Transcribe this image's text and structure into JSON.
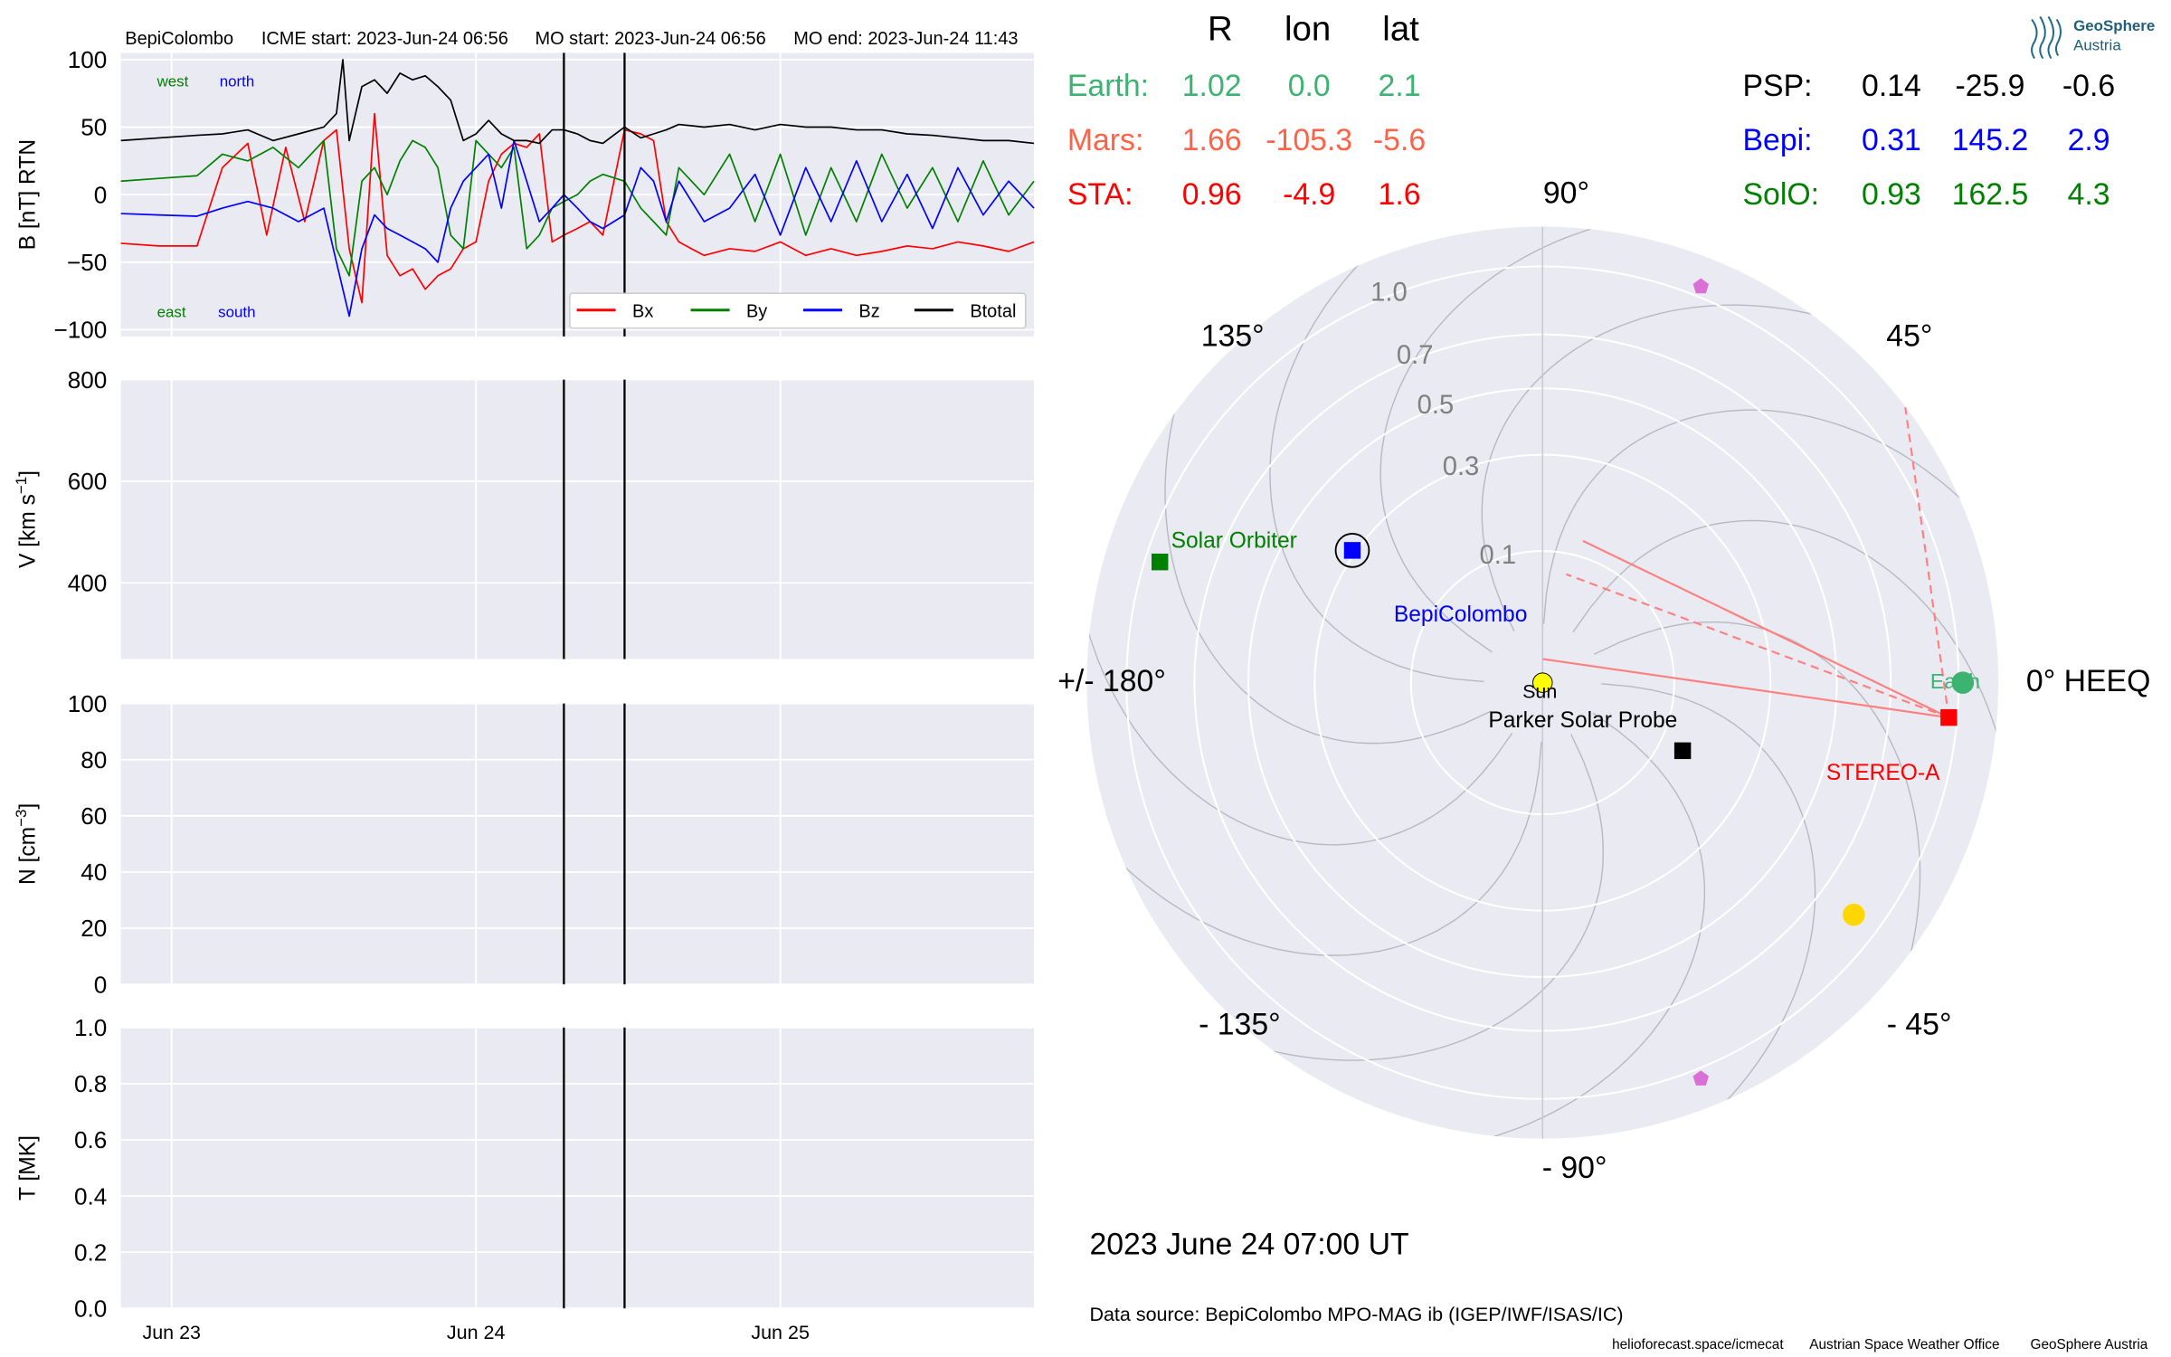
{
  "header": {
    "spacecraft": "BepiColombo",
    "icme_start": "ICME start: 2023-Jun-24 06:56",
    "mo_start": "MO start: 2023-Jun-24 06:56",
    "mo_end": "MO end: 2023-Jun-24 11:43"
  },
  "logo": {
    "line1": "GeoSphere",
    "line2": "Austria"
  },
  "chart_data": [
    {
      "type": "line",
      "panel": "magnetic field",
      "ylabel": "B [nT] RTN",
      "ylim": [
        -105,
        105
      ],
      "yticks": [
        100,
        50,
        0,
        -50,
        -100
      ],
      "ytick_labels": [
        "100",
        "50",
        "0",
        "−50",
        "−100"
      ],
      "grid": true,
      "legend_placement": "lower-right",
      "corner_labels": {
        "west": "west",
        "north": "north",
        "east": "east",
        "south": "south"
      },
      "series": [
        {
          "name": "Bx",
          "color": "#ff0000",
          "x": [
            "2023-06-22 20:00",
            "2023-06-22 23:00",
            "2023-06-23 02:00",
            "2023-06-23 04:00",
            "2023-06-23 06:00",
            "2023-06-23 07:30",
            "2023-06-23 09:00",
            "2023-06-23 10:30",
            "2023-06-23 12:00",
            "2023-06-23 13:00",
            "2023-06-23 14:00",
            "2023-06-23 15:00",
            "2023-06-23 16:00",
            "2023-06-23 17:00",
            "2023-06-23 18:00",
            "2023-06-23 19:00",
            "2023-06-23 20:00",
            "2023-06-23 21:00",
            "2023-06-23 22:00",
            "2023-06-23 23:00",
            "2023-06-24 00:00",
            "2023-06-24 01:00",
            "2023-06-24 02:00",
            "2023-06-24 03:00",
            "2023-06-24 04:00",
            "2023-06-24 05:00",
            "2023-06-24 06:00",
            "2023-06-24 06:56",
            "2023-06-24 08:00",
            "2023-06-24 09:00",
            "2023-06-24 10:00",
            "2023-06-24 11:43",
            "2023-06-24 13:00",
            "2023-06-24 14:00",
            "2023-06-24 15:00",
            "2023-06-24 16:00",
            "2023-06-24 17:00",
            "2023-06-24 18:00",
            "2023-06-24 20:00",
            "2023-06-24 22:00",
            "2023-06-25 00:00",
            "2023-06-25 02:00",
            "2023-06-25 04:00",
            "2023-06-25 06:00",
            "2023-06-25 08:00",
            "2023-06-25 10:00",
            "2023-06-25 12:00",
            "2023-06-25 14:00",
            "2023-06-25 16:00",
            "2023-06-25 18:00",
            "2023-06-25 20:00"
          ],
          "y": [
            -36,
            -38,
            -38,
            20,
            38,
            -30,
            35,
            -20,
            40,
            48,
            -40,
            -80,
            60,
            -45,
            -60,
            -55,
            -70,
            -60,
            -55,
            -40,
            -35,
            10,
            30,
            38,
            35,
            45,
            -35,
            -30,
            -25,
            -20,
            -30,
            48,
            45,
            40,
            -20,
            -35,
            -40,
            -45,
            -40,
            -42,
            -35,
            -45,
            -40,
            -45,
            -42,
            -38,
            -40,
            -35,
            -38,
            -42,
            -35
          ]
        },
        {
          "name": "By",
          "color": "#008000",
          "x": [
            "2023-06-22 20:00",
            "2023-06-22 23:00",
            "2023-06-23 02:00",
            "2023-06-23 04:00",
            "2023-06-23 06:00",
            "2023-06-23 08:00",
            "2023-06-23 10:00",
            "2023-06-23 12:00",
            "2023-06-23 13:00",
            "2023-06-23 14:00",
            "2023-06-23 15:00",
            "2023-06-23 16:00",
            "2023-06-23 17:00",
            "2023-06-23 18:00",
            "2023-06-23 19:00",
            "2023-06-23 20:00",
            "2023-06-23 21:00",
            "2023-06-23 22:00",
            "2023-06-23 23:00",
            "2023-06-24 00:00",
            "2023-06-24 01:00",
            "2023-06-24 02:00",
            "2023-06-24 03:00",
            "2023-06-24 04:00",
            "2023-06-24 05:00",
            "2023-06-24 06:00",
            "2023-06-24 06:56",
            "2023-06-24 08:00",
            "2023-06-24 09:00",
            "2023-06-24 10:00",
            "2023-06-24 11:43",
            "2023-06-24 13:00",
            "2023-06-24 14:00",
            "2023-06-24 15:00",
            "2023-06-24 16:00",
            "2023-06-24 18:00",
            "2023-06-24 20:00",
            "2023-06-24 22:00",
            "2023-06-25 00:00",
            "2023-06-25 02:00",
            "2023-06-25 04:00",
            "2023-06-25 06:00",
            "2023-06-25 08:00",
            "2023-06-25 10:00",
            "2023-06-25 12:00",
            "2023-06-25 14:00",
            "2023-06-25 16:00",
            "2023-06-25 18:00",
            "2023-06-25 20:00"
          ],
          "y": [
            10,
            12,
            14,
            30,
            25,
            35,
            20,
            40,
            -40,
            -60,
            10,
            20,
            0,
            25,
            40,
            35,
            20,
            -30,
            -40,
            40,
            30,
            20,
            35,
            -40,
            -30,
            -10,
            -5,
            0,
            10,
            15,
            10,
            -10,
            -20,
            -30,
            20,
            0,
            30,
            -20,
            30,
            -30,
            20,
            -20,
            30,
            -10,
            20,
            -20,
            25,
            -15,
            10
          ]
        },
        {
          "name": "Bz",
          "color": "#0000ff",
          "x": [
            "2023-06-22 20:00",
            "2023-06-22 23:00",
            "2023-06-23 02:00",
            "2023-06-23 04:00",
            "2023-06-23 06:00",
            "2023-06-23 08:00",
            "2023-06-23 10:00",
            "2023-06-23 12:00",
            "2023-06-23 13:00",
            "2023-06-23 14:00",
            "2023-06-23 15:00",
            "2023-06-23 16:00",
            "2023-06-23 17:00",
            "2023-06-23 18:00",
            "2023-06-23 19:00",
            "2023-06-23 20:00",
            "2023-06-23 21:00",
            "2023-06-23 22:00",
            "2023-06-23 23:00",
            "2023-06-24 00:00",
            "2023-06-24 01:00",
            "2023-06-24 02:00",
            "2023-06-24 03:00",
            "2023-06-24 04:00",
            "2023-06-24 05:00",
            "2023-06-24 06:00",
            "2023-06-24 06:56",
            "2023-06-24 08:00",
            "2023-06-24 09:00",
            "2023-06-24 10:00",
            "2023-06-24 11:43",
            "2023-06-24 13:00",
            "2023-06-24 14:00",
            "2023-06-24 15:00",
            "2023-06-24 16:00",
            "2023-06-24 18:00",
            "2023-06-24 20:00",
            "2023-06-24 22:00",
            "2023-06-25 00:00",
            "2023-06-25 02:00",
            "2023-06-25 04:00",
            "2023-06-25 06:00",
            "2023-06-25 08:00",
            "2023-06-25 10:00",
            "2023-06-25 12:00",
            "2023-06-25 14:00",
            "2023-06-25 16:00",
            "2023-06-25 18:00",
            "2023-06-25 20:00"
          ],
          "y": [
            -14,
            -15,
            -16,
            -10,
            -5,
            -10,
            -20,
            -10,
            -50,
            -90,
            -40,
            -15,
            -25,
            -30,
            -35,
            -40,
            -50,
            -10,
            10,
            20,
            30,
            -10,
            40,
            10,
            -20,
            -10,
            0,
            -10,
            -20,
            -25,
            -15,
            20,
            10,
            -20,
            10,
            -20,
            -10,
            15,
            -30,
            20,
            -20,
            25,
            -20,
            15,
            -25,
            20,
            -15,
            10,
            -10
          ]
        },
        {
          "name": "Btotal",
          "color": "#000000",
          "x": [
            "2023-06-22 20:00",
            "2023-06-22 23:00",
            "2023-06-23 02:00",
            "2023-06-23 04:00",
            "2023-06-23 06:00",
            "2023-06-23 08:00",
            "2023-06-23 10:00",
            "2023-06-23 12:00",
            "2023-06-23 13:00",
            "2023-06-23 13:30",
            "2023-06-23 14:00",
            "2023-06-23 15:00",
            "2023-06-23 16:00",
            "2023-06-23 17:00",
            "2023-06-23 18:00",
            "2023-06-23 19:00",
            "2023-06-23 20:00",
            "2023-06-23 21:00",
            "2023-06-23 22:00",
            "2023-06-23 23:00",
            "2023-06-24 00:00",
            "2023-06-24 01:00",
            "2023-06-24 02:00",
            "2023-06-24 03:00",
            "2023-06-24 04:00",
            "2023-06-24 05:00",
            "2023-06-24 06:00",
            "2023-06-24 06:56",
            "2023-06-24 08:00",
            "2023-06-24 09:00",
            "2023-06-24 10:00",
            "2023-06-24 11:43",
            "2023-06-24 13:00",
            "2023-06-24 14:00",
            "2023-06-24 15:00",
            "2023-06-24 16:00",
            "2023-06-24 18:00",
            "2023-06-24 20:00",
            "2023-06-24 22:00",
            "2023-06-25 00:00",
            "2023-06-25 02:00",
            "2023-06-25 04:00",
            "2023-06-25 06:00",
            "2023-06-25 08:00",
            "2023-06-25 10:00",
            "2023-06-25 12:00",
            "2023-06-25 14:00",
            "2023-06-25 16:00",
            "2023-06-25 18:00",
            "2023-06-25 20:00"
          ],
          "y": [
            40,
            42,
            44,
            45,
            48,
            40,
            45,
            50,
            60,
            100,
            40,
            80,
            85,
            75,
            90,
            85,
            88,
            80,
            70,
            40,
            45,
            55,
            45,
            40,
            40,
            38,
            48,
            48,
            45,
            40,
            38,
            50,
            42,
            45,
            48,
            52,
            50,
            52,
            48,
            52,
            50,
            50,
            48,
            48,
            45,
            44,
            42,
            40,
            40,
            38
          ]
        }
      ],
      "vlines": [
        "2023-06-24 06:56",
        "2023-06-24 11:43"
      ]
    },
    {
      "type": "line",
      "panel": "speed",
      "ylabel": "V [km s",
      "ylabel_sup": "−1",
      "ylabel_end": "]",
      "ylim": [
        250,
        800
      ],
      "yticks": [
        800,
        600,
        400
      ],
      "ytick_labels": [
        "800",
        "600",
        "400"
      ],
      "grid": true,
      "series": []
    },
    {
      "type": "line",
      "panel": "density",
      "ylabel": "N [cm",
      "ylabel_sup": "−3",
      "ylabel_end": "]",
      "ylim": [
        0,
        100
      ],
      "yticks": [
        100,
        80,
        60,
        40,
        20,
        0
      ],
      "ytick_labels": [
        "100",
        "80",
        "60",
        "40",
        "20",
        "0"
      ],
      "grid": true,
      "series": []
    },
    {
      "type": "line",
      "panel": "temperature",
      "ylabel": "T [MK]",
      "ylim": [
        0,
        1
      ],
      "yticks": [
        1.0,
        0.8,
        0.6,
        0.4,
        0.2,
        0.0
      ],
      "ytick_labels": [
        "1.0",
        "0.8",
        "0.6",
        "0.4",
        "0.2",
        "0.0"
      ],
      "xlim": [
        "2023-06-22 20:00",
        "2023-06-25 20:00"
      ],
      "xticks": [
        "2023-06-23 00:00",
        "2023-06-24 00:00",
        "2023-06-25 00:00"
      ],
      "xtick_labels": [
        "Jun 23",
        "Jun 24",
        "Jun 25"
      ],
      "grid": true,
      "series": []
    },
    {
      "type": "scatter",
      "panel": "polar position plot",
      "coordinate_system": "HEEQ",
      "radial_max_au": 1.2,
      "rings": [
        0.1,
        0.3,
        0.5,
        0.7,
        1.0
      ],
      "ring_labels": [
        "0.1",
        "0.3",
        "0.5",
        "0.7",
        "1.0"
      ],
      "angle_labels": [
        {
          "deg": 0,
          "text": "0° HEEQ"
        },
        {
          "deg": 45,
          "text": "45°"
        },
        {
          "deg": 90,
          "text": "90°"
        },
        {
          "deg": 135,
          "text": "135°"
        },
        {
          "deg": 180,
          "text": "+/- 180°"
        },
        {
          "deg": -135,
          "text": "- 135°"
        },
        {
          "deg": -90,
          "text": "- 90°"
        },
        {
          "deg": -45,
          "text": "- 45°"
        }
      ],
      "table": {
        "headers": [
          "R",
          "lon",
          "lat"
        ],
        "rows": [
          {
            "name": "Earth:",
            "r": "1.02",
            "lon": "0.0",
            "lat": "2.1",
            "color": "#3cb371"
          },
          {
            "name": "Mars:",
            "r": "1.66",
            "lon": "-105.3",
            "lat": "-5.6",
            "color": "#ff6347"
          },
          {
            "name": "STA:",
            "r": "0.96",
            "lon": "-4.9",
            "lat": "1.6",
            "color": "#ff0000"
          },
          {
            "name": "PSP:",
            "r": "0.14",
            "lon": "-25.9",
            "lat": "-0.6",
            "color": "#000000"
          },
          {
            "name": "Bepi:",
            "r": "0.31",
            "lon": "145.2",
            "lat": "2.9",
            "color": "#0000ff"
          },
          {
            "name": "SolO:",
            "r": "0.93",
            "lon": "162.5",
            "lat": "4.3",
            "color": "#008000"
          }
        ]
      },
      "bodies": [
        {
          "name": "Sun",
          "r": 0.0,
          "lon": 0,
          "marker": "circle",
          "color": "#ffff00"
        },
        {
          "name": "Earth",
          "r": 1.02,
          "lon": 0.0,
          "marker": "circle",
          "color": "#3cb371"
        },
        {
          "name": "STEREO-A",
          "r": 0.96,
          "lon": -4.9,
          "marker": "square",
          "color": "#ff0000"
        },
        {
          "name": "Parker Solar Probe",
          "r": 0.14,
          "lon": -25.9,
          "marker": "square",
          "color": "#000000"
        },
        {
          "name": "BepiColombo",
          "r": 0.31,
          "lon": 145.2,
          "marker": "square",
          "color": "#0000ff"
        },
        {
          "name": "Solar Orbiter",
          "r": 0.93,
          "lon": 162.5,
          "marker": "square",
          "color": "#008000"
        },
        {
          "name": "",
          "r": 0.87,
          "lon": -36.7,
          "marker": "circle",
          "color": "#ffd700"
        },
        {
          "name": "",
          "r": 1.05,
          "lon": 68.2,
          "marker": "pentagon",
          "color": "#da70d6"
        },
        {
          "name": "",
          "r": 1.05,
          "lon": -68.2,
          "marker": "pentagon",
          "color": "#da70d6"
        }
      ]
    }
  ],
  "plot_date": "2023 June 24  07:00 UT",
  "data_source": "Data source: BepiColombo MPO-MAG ib (IGEP/IWF/ISAS/IC)",
  "footer": {
    "url": "helioforecast.space/icmecat",
    "office": "Austrian Space Weather Office",
    "org": "GeoSphere Austria"
  },
  "colors": {
    "panel_background": "#eaeaf2",
    "grid": "#ffffff",
    "legend_background": "#ffffff"
  }
}
